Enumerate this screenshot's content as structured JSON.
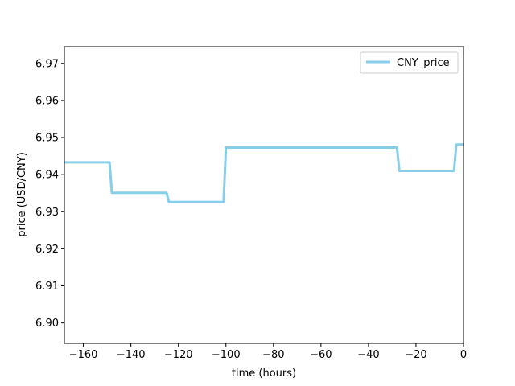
{
  "chart_data": {
    "type": "line",
    "xlabel": "time (hours)",
    "ylabel": "price (USD/CNY)",
    "xlim": [
      -168,
      0
    ],
    "ylim": [
      6.8945,
      6.9745
    ],
    "x_ticks": [
      -160,
      -140,
      -120,
      -100,
      -80,
      -60,
      -40,
      -20,
      0
    ],
    "x_tick_labels": [
      "−160",
      "−140",
      "−120",
      "−100",
      "−80",
      "−60",
      "−40",
      "−20",
      "0"
    ],
    "y_ticks": [
      6.9,
      6.91,
      6.92,
      6.93,
      6.94,
      6.95,
      6.96,
      6.97
    ],
    "y_tick_labels": [
      "6.90",
      "6.91",
      "6.92",
      "6.93",
      "6.94",
      "6.95",
      "6.96",
      "6.97"
    ],
    "grid": false,
    "legend_position": "top-right",
    "series": [
      {
        "name": "CNY_price",
        "color": "#87ceeb",
        "x": [
          -168,
          -149,
          -148,
          -125,
          -124,
          -101,
          -100,
          -28,
          -27,
          -4,
          -3,
          0
        ],
        "y": [
          6.9433,
          6.9433,
          6.9351,
          6.9351,
          6.9326,
          6.9326,
          6.9473,
          6.9473,
          6.941,
          6.941,
          6.9481,
          6.9481
        ]
      }
    ]
  }
}
